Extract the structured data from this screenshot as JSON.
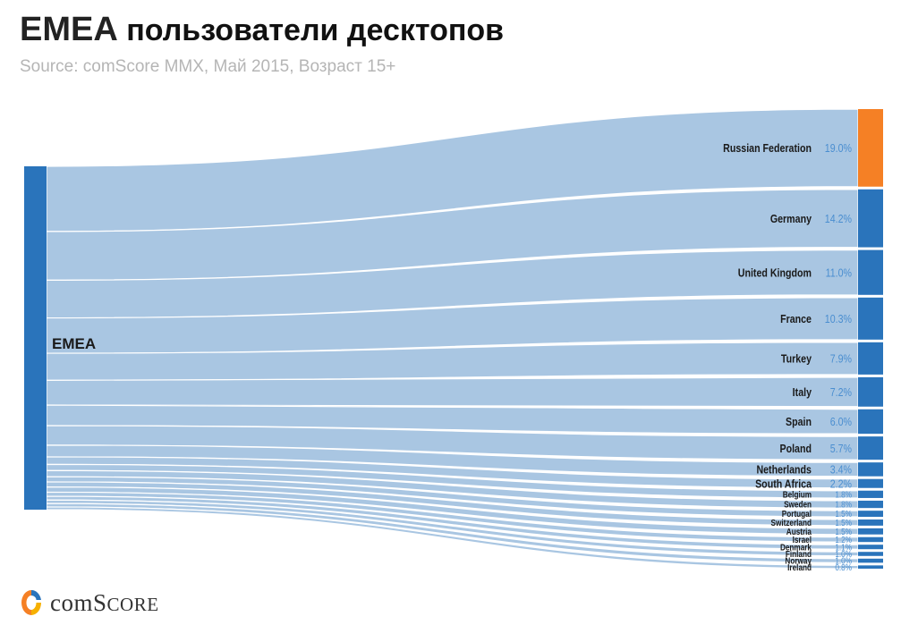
{
  "header": {
    "title_main": "EMEA",
    "title_rest": "пользователи десктопов",
    "subtitle": "Source: comScore MMX, Май 2015, Возраст 15+"
  },
  "logo": {
    "name": "comScore",
    "prefix": "com",
    "big": "S",
    "rest": "CORE"
  },
  "colors": {
    "source_bar": "#2a74bb",
    "target_bar": "#2a74bb",
    "highlight_bar": "#f58025",
    "flow": "#a9c6e2",
    "label": "#1a1a1a",
    "value": "#4a8ed0"
  },
  "chart_data": {
    "type": "sankey",
    "title": "EMEA пользователи десктопов",
    "source": "EMEA",
    "targets": [
      {
        "name": "Russian Federation",
        "value": 19.0,
        "label": "19.0%",
        "highlight": true
      },
      {
        "name": "Germany",
        "value": 14.2,
        "label": "14.2%"
      },
      {
        "name": "United Kingdom",
        "value": 11.0,
        "label": "11.0%"
      },
      {
        "name": "France",
        "value": 10.3,
        "label": "10.3%"
      },
      {
        "name": "Turkey",
        "value": 7.9,
        "label": "7.9%"
      },
      {
        "name": "Italy",
        "value": 7.2,
        "label": "7.2%"
      },
      {
        "name": "Spain",
        "value": 6.0,
        "label": "6.0%"
      },
      {
        "name": "Poland",
        "value": 5.7,
        "label": "5.7%"
      },
      {
        "name": "Netherlands",
        "value": 3.4,
        "label": "3.4%"
      },
      {
        "name": "South Africa",
        "value": 2.2,
        "label": "2.2%"
      },
      {
        "name": "Belgium",
        "value": 1.8,
        "label": "1.8%"
      },
      {
        "name": "Sweden",
        "value": 1.8,
        "label": "1.8%"
      },
      {
        "name": "Portugal",
        "value": 1.5,
        "label": "1.5%"
      },
      {
        "name": "Switzerland",
        "value": 1.5,
        "label": "1.5%"
      },
      {
        "name": "Austria",
        "value": 1.5,
        "label": "1.5%"
      },
      {
        "name": "Israel",
        "value": 1.2,
        "label": "1.2%"
      },
      {
        "name": "Denmark",
        "value": 1.1,
        "label": "1.1%"
      },
      {
        "name": "Finland",
        "value": 1.0,
        "label": "1.0%"
      },
      {
        "name": "Norway",
        "value": 1.0,
        "label": "1.0%"
      },
      {
        "name": "Ireland",
        "value": 0.8,
        "label": "0.8%"
      }
    ]
  }
}
